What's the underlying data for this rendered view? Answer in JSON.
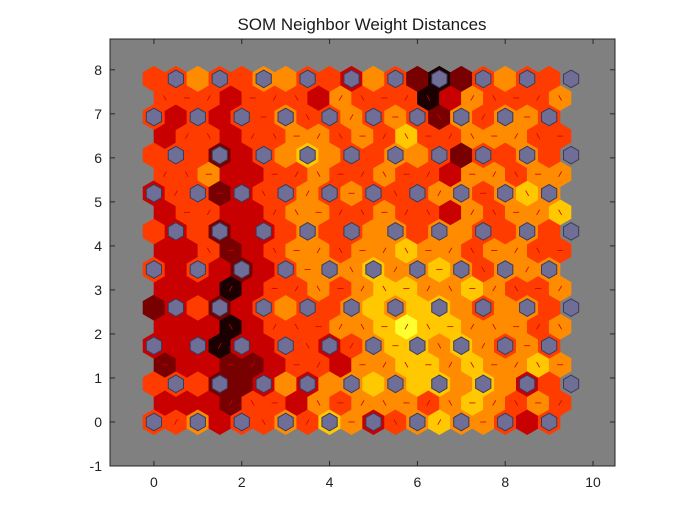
{
  "chart_data": {
    "type": "heatmap",
    "title": "SOM Neighbor Weight Distances",
    "xlabel": "",
    "ylabel": "",
    "xlim": [
      -1,
      10.5
    ],
    "ylim": [
      -1,
      8.7
    ],
    "xticks": [
      0,
      2,
      4,
      6,
      8,
      10
    ],
    "yticks": [
      -1,
      0,
      1,
      2,
      3,
      4,
      5,
      6,
      7,
      8
    ],
    "grid": "hexagonal",
    "neuron_grid": {
      "columns": 10,
      "rows": 10
    },
    "colormap": [
      "#ffff30",
      "#ffc800",
      "#ff8c00",
      "#ff3c00",
      "#c80000",
      "#780000",
      "#1a0000"
    ],
    "background_color": "#808080",
    "neuron_color": "#6e6e96",
    "edge_line_color": "#cc0000",
    "neighbor_distances": [
      [
        3,
        3,
        2,
        4,
        3,
        3,
        2,
        3,
        1,
        2,
        4,
        3,
        2,
        1,
        2,
        2,
        3,
        4,
        3
      ],
      [
        4,
        4,
        4,
        5,
        3,
        3,
        4,
        2,
        3,
        2,
        2,
        2,
        3,
        2,
        1,
        2,
        3,
        2,
        3
      ],
      [
        3,
        3,
        3,
        5,
        5,
        4,
        2,
        4,
        2,
        2,
        1,
        2,
        1,
        1,
        2,
        1,
        2,
        4,
        3
      ],
      [
        5,
        4,
        4,
        5,
        5,
        4,
        3,
        3,
        4,
        2,
        2,
        1,
        1,
        2,
        1,
        2,
        2,
        1,
        2
      ],
      [
        4,
        4,
        4,
        6,
        4,
        4,
        3,
        3,
        4,
        3,
        2,
        1,
        1,
        2,
        1,
        2,
        3,
        2,
        3
      ],
      [
        4,
        4,
        4,
        6,
        4,
        3,
        3,
        3,
        2,
        2,
        1,
        0,
        1,
        1,
        2,
        2,
        2,
        3,
        2
      ],
      [
        5,
        4,
        3,
        5,
        4,
        3,
        2,
        3,
        3,
        2,
        1,
        2,
        1,
        1,
        2,
        3,
        2,
        2,
        3
      ],
      [
        4,
        4,
        4,
        6,
        4,
        3,
        3,
        2,
        3,
        2,
        1,
        1,
        2,
        2,
        1,
        2,
        3,
        3,
        2
      ],
      [
        3,
        4,
        3,
        4,
        5,
        4,
        3,
        2,
        2,
        2,
        1,
        2,
        2,
        1,
        2,
        3,
        2,
        2,
        2
      ],
      [
        4,
        4,
        3,
        5,
        4,
        3,
        2,
        2,
        3,
        2,
        2,
        1,
        2,
        2,
        3,
        2,
        2,
        3,
        3
      ],
      [
        3,
        4,
        3,
        5,
        4,
        4,
        3,
        2,
        3,
        3,
        2,
        2,
        3,
        2,
        2,
        3,
        3,
        2,
        3
      ],
      [
        4,
        3,
        3,
        4,
        4,
        3,
        2,
        2,
        3,
        3,
        2,
        3,
        3,
        4,
        2,
        3,
        2,
        2,
        1
      ],
      [
        4,
        3,
        3,
        5,
        4,
        3,
        3,
        2,
        3,
        2,
        3,
        3,
        3,
        2,
        2,
        3,
        2,
        1,
        2
      ],
      [
        3,
        3,
        2,
        4,
        4,
        3,
        3,
        2,
        3,
        3,
        2,
        3,
        3,
        4,
        2,
        2,
        3,
        2,
        2
      ],
      [
        3,
        3,
        3,
        5,
        4,
        3,
        2,
        1,
        2,
        3,
        3,
        2,
        2,
        3,
        5,
        3,
        3,
        2,
        3
      ],
      [
        4,
        3,
        3,
        4,
        3,
        3,
        2,
        2,
        3,
        2,
        3,
        1,
        3,
        3,
        2,
        2,
        2,
        3,
        3
      ],
      [
        3,
        4,
        3,
        4,
        3,
        3,
        2,
        3,
        3,
        2,
        3,
        2,
        3,
        5,
        2,
        3,
        2,
        2,
        3
      ],
      [
        3,
        3,
        3,
        4,
        3,
        3,
        3,
        4,
        2,
        3,
        3,
        3,
        6,
        4,
        2,
        3,
        3,
        3,
        2
      ],
      [
        3,
        3,
        2,
        3,
        3,
        2,
        2,
        3,
        3,
        4,
        2,
        3,
        5,
        6,
        5,
        3,
        2,
        3,
        3
      ]
    ]
  }
}
